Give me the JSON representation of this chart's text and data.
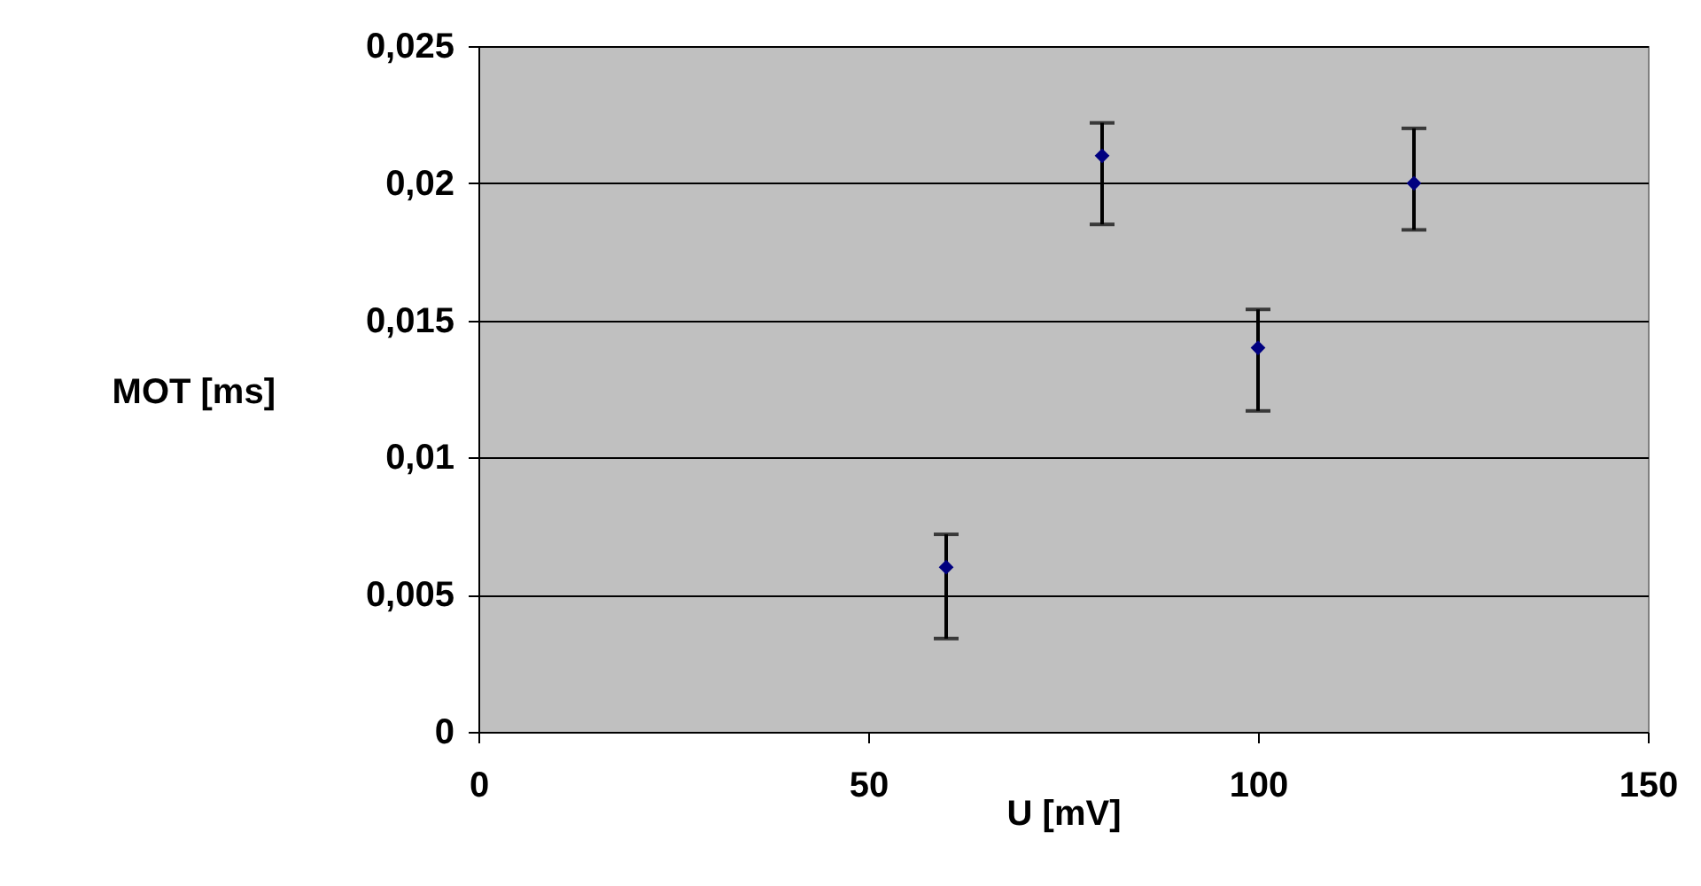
{
  "chart_data": {
    "type": "scatter",
    "xlabel": "U [mV]",
    "ylabel": "MOT [ms]",
    "x": [
      60,
      80,
      100,
      120
    ],
    "series": [
      {
        "color": "#000080",
        "values": [
          0.006,
          0.021,
          0.014,
          0.02
        ],
        "errors": [
          [
            0.0034,
            0.0072
          ],
          [
            0.0185,
            0.0222
          ],
          [
            0.0117,
            0.0154
          ],
          [
            0.0183,
            0.022
          ]
        ]
      }
    ],
    "xlim": [
      0,
      150
    ],
    "xticks": [
      0,
      50,
      100,
      150
    ],
    "ylim": [
      0,
      0.025
    ],
    "yticks": [
      0,
      {
        "value": 0.005,
        "label": "0,005"
      },
      {
        "value": 0.01,
        "label": "0,01"
      },
      {
        "value": 0.015,
        "label": "0,015"
      },
      {
        "value": 0.02,
        "label": "0,02"
      },
      {
        "value": 0.025,
        "label": "0,025"
      }
    ],
    "grid": "y",
    "marker": "diamond"
  }
}
